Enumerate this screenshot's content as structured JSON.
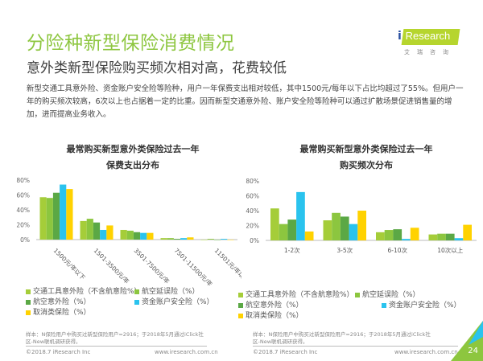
{
  "header": {
    "title": "分险种新型保险消费情况",
    "subtitle": "意外类新型保险购买频次相对高，花费较低",
    "body": "新型交通工具意外险、资金账户安全险等险种，用户一年保费支出相对较低，其中1500元/每年以下占比均超过了55%。但用户一年的购买频次较高，6次以上也占据着一定的比重。因而新型交通意外险、账户安全险等险种可以通过扩散场景促进销售量的增加，进而提高业务收入。"
  },
  "logo": {
    "text": "iResearch",
    "cn": "艾瑞咨询"
  },
  "colors": [
    "#a5cd39",
    "#8cc63f",
    "#5ba845",
    "#2ac3ee",
    "#ffd200"
  ],
  "chart_data": [
    {
      "type": "bar",
      "title": "最常购买新型意外类保险过去一年",
      "subtitle": "保费支出分布",
      "categories": [
        "1500元/年以下",
        "1501-3500元/年",
        "3501-7500元/年",
        "7501-11500元/年",
        "11501元/年以上"
      ],
      "yticks": [
        "0%",
        "20%",
        "40%",
        "60%",
        "80%"
      ],
      "ylim": [
        0,
        80
      ],
      "series": [
        {
          "name": "交通工具意外险（不含航意险%）",
          "values": [
            57,
            25,
            13,
            2,
            0
          ]
        },
        {
          "name": "航空延误险（%）",
          "values": [
            56,
            28,
            12,
            2,
            1
          ]
        },
        {
          "name": "航空意外险（%）",
          "values": [
            63,
            23,
            10,
            1,
            0
          ]
        },
        {
          "name": "资金账户安全险（%）",
          "values": [
            74,
            13,
            9,
            2,
            1
          ]
        },
        {
          "name": "取消类保险（%）",
          "values": [
            68,
            19,
            9,
            3,
            0
          ]
        }
      ],
      "legend": "bottom"
    },
    {
      "type": "bar",
      "title": "最常购买新型意外类保险过去一年",
      "subtitle": "购买频次分布",
      "categories": [
        "1-2次",
        "3-5次",
        "6-10次",
        "10次以上"
      ],
      "yticks": [
        "0%",
        "20%",
        "40%",
        "60%",
        "80%"
      ],
      "ylim": [
        0,
        80
      ],
      "series": [
        {
          "name": "交通工具意外险（不含航意险%）",
          "values": [
            43,
            27,
            11,
            8
          ]
        },
        {
          "name": "航空延误险（%）",
          "values": [
            22,
            37,
            14,
            9
          ]
        },
        {
          "name": "航空意外险（%）",
          "values": [
            28,
            32,
            15,
            9
          ]
        },
        {
          "name": "资金账户安全险（%）",
          "values": [
            65,
            22,
            2,
            3
          ]
        },
        {
          "name": "取消类保险（%）",
          "values": [
            12,
            40,
            17,
            21
          ]
        }
      ],
      "legend": "bottom"
    }
  ],
  "footer": {
    "note": "样本：N保险用户中购买过新型保险用户=2916；于2018年5月通过iClick社区-New联机调研获得。",
    "copyright": "©2018.7 iResearch Inc",
    "url": "www.iresearch.com.cn",
    "page": "24"
  }
}
